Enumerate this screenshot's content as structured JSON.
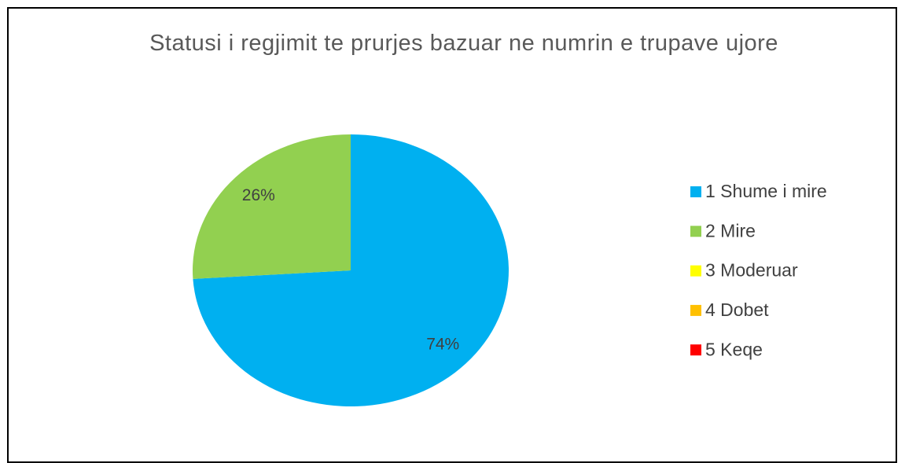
{
  "chart_data": {
    "type": "pie",
    "title": "Statusi i regjimit te prurjes bazuar ne numrin e trupave ujore",
    "categories": [
      "1 Shume i mire",
      "2 Mire",
      "3 Moderuar",
      "4 Dobet",
      "5 Keqe"
    ],
    "values": [
      74,
      26,
      0,
      0,
      0
    ],
    "value_labels": [
      "74%",
      "26%",
      null,
      null,
      null
    ],
    "colors": [
      "#00b0f0",
      "#92d050",
      "#ffff00",
      "#ffc000",
      "#ff0000"
    ],
    "legend": "right"
  }
}
